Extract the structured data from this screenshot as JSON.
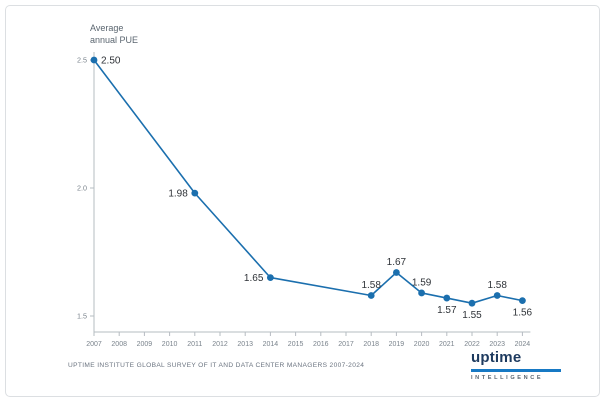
{
  "header": {
    "title_line1": "Average",
    "title_line2": "annual PUE"
  },
  "footer": {
    "source": "UPTIME INSTITUTE GLOBAL SURVEY OF IT AND DATA CENTER MANAGERS 2007-2024"
  },
  "logo": {
    "wordmark": "uptime",
    "subtext": "INTELLIGENCE"
  },
  "colors": {
    "line": "#1b6fae",
    "point": "#1b6fae",
    "axis": "#b6bcc2",
    "tick_text": "#7a838c",
    "data_label": "#2f3338",
    "title_text": "#5b6670",
    "footer_text": "#6b7480",
    "logo_navy": "#1d3a5f",
    "logo_blue": "#1779c4"
  },
  "chart_data": {
    "type": "line",
    "title": "Average annual PUE",
    "xlabel": "",
    "ylabel": "Average annual PUE",
    "x_ticks": [
      2007,
      2008,
      2009,
      2010,
      2011,
      2012,
      2013,
      2014,
      2015,
      2016,
      2017,
      2018,
      2019,
      2020,
      2021,
      2022,
      2023,
      2024
    ],
    "y_ticks": [
      "1.5",
      "2.0",
      "2.5"
    ],
    "y_tick_values": [
      1.5,
      2.0,
      2.5
    ],
    "ylim": [
      1.5,
      2.5
    ],
    "grid": false,
    "legend": false,
    "series": [
      {
        "name": "Average annual PUE",
        "points": [
          {
            "x": 2007,
            "y": 2.5,
            "label": "2.50",
            "label_pos": "right"
          },
          {
            "x": 2011,
            "y": 1.98,
            "label": "1.98",
            "label_pos": "left"
          },
          {
            "x": 2014,
            "y": 1.65,
            "label": "1.65",
            "label_pos": "left"
          },
          {
            "x": 2018,
            "y": 1.58,
            "label": "1.58",
            "label_pos": "above"
          },
          {
            "x": 2019,
            "y": 1.67,
            "label": "1.67",
            "label_pos": "above"
          },
          {
            "x": 2020,
            "y": 1.59,
            "label": "1.59",
            "label_pos": "above"
          },
          {
            "x": 2021,
            "y": 1.57,
            "label": "1.57",
            "label_pos": "below"
          },
          {
            "x": 2022,
            "y": 1.55,
            "label": "1.55",
            "label_pos": "below"
          },
          {
            "x": 2023,
            "y": 1.58,
            "label": "1.58",
            "label_pos": "above"
          },
          {
            "x": 2024,
            "y": 1.56,
            "label": "1.56",
            "label_pos": "below"
          }
        ]
      }
    ]
  }
}
